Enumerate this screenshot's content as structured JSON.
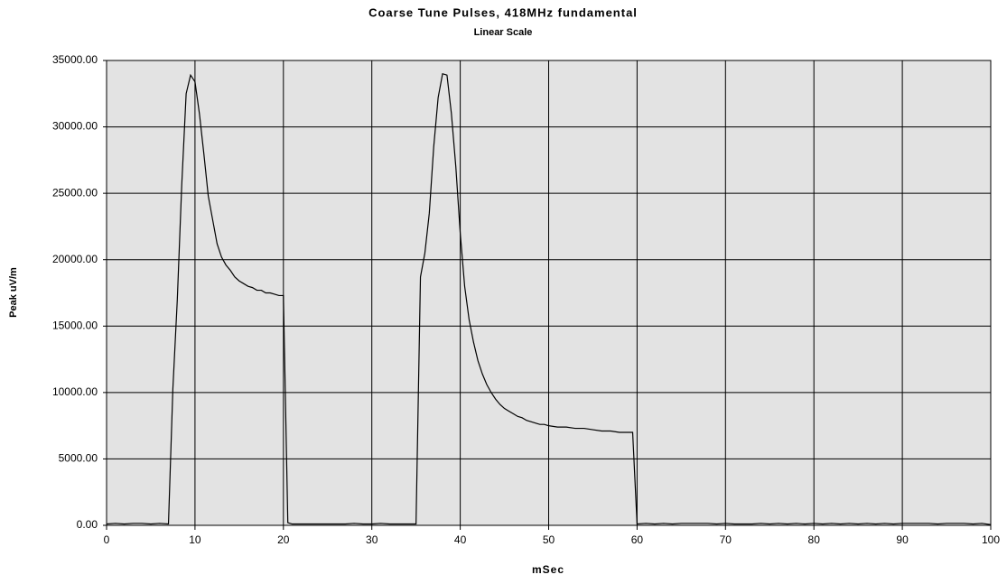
{
  "chart_data": {
    "type": "line",
    "title": "Coarse Tune Pulses,  418MHz fundamental",
    "subtitle": "Linear Scale",
    "x_label": "mSec",
    "y_label": "Peak uV/m",
    "x": [
      0,
      1,
      2,
      3,
      4,
      5,
      6,
      7,
      7.5,
      8,
      8.5,
      9,
      9.5,
      10,
      10.5,
      11,
      11.5,
      12,
      12.5,
      13,
      13.5,
      14,
      14.5,
      15,
      15.5,
      16,
      16.5,
      17,
      17.5,
      18,
      18.5,
      19,
      19.5,
      20,
      20.5,
      21,
      22,
      23,
      24,
      25,
      26,
      27,
      28,
      29,
      30,
      31,
      32,
      33,
      34,
      35,
      35.5,
      36,
      36.5,
      37,
      37.5,
      38,
      38.5,
      39,
      39.5,
      40,
      40.5,
      41,
      41.5,
      42,
      42.5,
      43,
      43.5,
      44,
      44.5,
      45,
      45.5,
      46,
      46.5,
      47,
      47.5,
      48,
      48.5,
      49,
      49.5,
      50,
      51,
      52,
      53,
      54,
      55,
      56,
      57,
      58,
      59,
      59.5,
      60,
      61,
      62,
      63,
      64,
      65,
      66,
      67,
      68,
      69,
      70,
      71,
      72,
      73,
      74,
      75,
      76,
      77,
      78,
      79,
      80,
      81,
      82,
      83,
      84,
      85,
      86,
      87,
      88,
      89,
      90,
      91,
      92,
      93,
      94,
      95,
      96,
      97,
      98,
      99,
      100
    ],
    "series": [
      {
        "name": "Peak",
        "color": "#000000",
        "values": [
          100,
          150,
          100,
          150,
          150,
          100,
          150,
          100,
          10300,
          17000,
          25600,
          32500,
          33900,
          33400,
          31000,
          28000,
          24800,
          23000,
          21200,
          20200,
          19600,
          19200,
          18700,
          18400,
          18200,
          18000,
          17900,
          17700,
          17700,
          17500,
          17500,
          17400,
          17300,
          17300,
          200,
          100,
          100,
          100,
          100,
          100,
          100,
          100,
          150,
          100,
          100,
          150,
          100,
          100,
          100,
          100,
          18700,
          20500,
          23500,
          28500,
          32200,
          34000,
          33900,
          31000,
          27000,
          22000,
          18000,
          15500,
          13800,
          12400,
          11400,
          10600,
          10000,
          9500,
          9100,
          8800,
          8600,
          8400,
          8200,
          8100,
          7900,
          7800,
          7700,
          7600,
          7600,
          7500,
          7400,
          7400,
          7300,
          7300,
          7200,
          7100,
          7100,
          7000,
          7000,
          7000,
          100,
          150,
          100,
          150,
          100,
          150,
          150,
          150,
          150,
          100,
          150,
          100,
          100,
          100,
          150,
          100,
          150,
          100,
          150,
          100,
          150,
          100,
          150,
          100,
          150,
          100,
          150,
          100,
          150,
          100,
          150,
          150,
          150,
          150,
          100,
          150,
          150,
          150,
          100,
          150,
          50
        ]
      }
    ],
    "xlim": [
      0,
      100
    ],
    "xticks": [
      0,
      10,
      20,
      30,
      40,
      50,
      60,
      70,
      80,
      90,
      100
    ],
    "ylim": [
      0,
      35000
    ],
    "yticks": [
      {
        "value": 0,
        "label": "0.00"
      },
      {
        "value": 5000,
        "label": "5000.00"
      },
      {
        "value": 10000,
        "label": "10000.00"
      },
      {
        "value": 15000,
        "label": "15000.00"
      },
      {
        "value": 20000,
        "label": "20000.00"
      },
      {
        "value": 25000,
        "label": "25000.00"
      },
      {
        "value": 30000,
        "label": "30000.00"
      },
      {
        "value": 35000,
        "label": "35000.00"
      }
    ],
    "grid": true,
    "plot_background": "#e3e3e3"
  }
}
